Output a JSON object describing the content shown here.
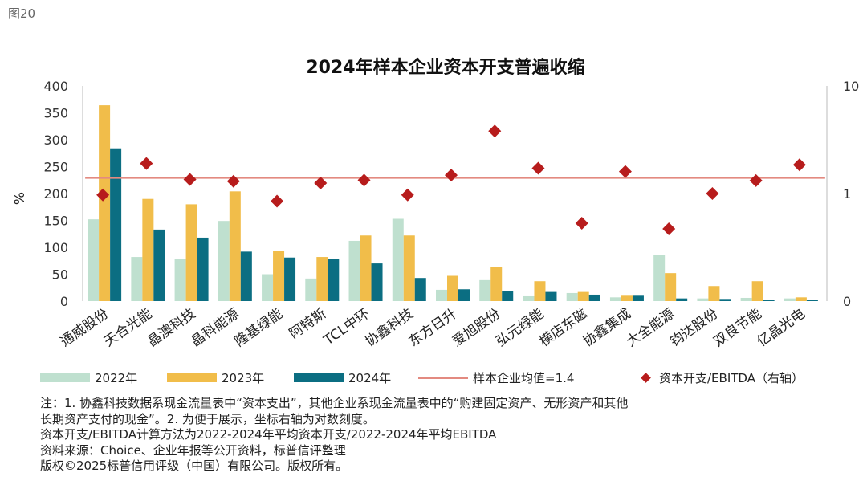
{
  "figure_label": "图20",
  "chart_data": {
    "type": "bar",
    "title": "2024年样本企业资本开支普遍收缩",
    "ylabel": "%",
    "ylim": [
      0,
      400
    ],
    "y_ticks": [
      "0",
      "50",
      "100",
      "150",
      "200",
      "250",
      "300",
      "350",
      "400"
    ],
    "y2_scale": "log",
    "y2lim": [
      0.1,
      10
    ],
    "y2_ticks": [
      {
        "value": 0.1,
        "label": "0"
      },
      {
        "value": 1,
        "label": "1"
      },
      {
        "value": 10,
        "label": "10"
      }
    ],
    "categories": [
      "通威股份",
      "天合光能",
      "晶澳科技",
      "晶科能源",
      "隆基绿能",
      "阿特斯",
      "TCL中环",
      "协鑫科技",
      "东方日升",
      "爱旭股份",
      "弘元绿能",
      "横店东磁",
      "协鑫集成",
      "大全能源",
      "钧达股份",
      "双良节能",
      "亿晶光电"
    ],
    "series": [
      {
        "name": "2022年",
        "color": "#bfe0cf",
        "values": [
          152,
          82,
          78,
          149,
          50,
          42,
          112,
          153,
          21,
          39,
          9,
          15,
          7,
          86,
          5,
          6,
          5
        ]
      },
      {
        "name": "2023年",
        "color": "#f1bd4a",
        "values": [
          364,
          190,
          180,
          204,
          93,
          82,
          122,
          122,
          47,
          63,
          37,
          17,
          10,
          52,
          28,
          37,
          7
        ]
      },
      {
        "name": "2024年",
        "color": "#0b6e82",
        "values": [
          284,
          133,
          118,
          92,
          81,
          79,
          70,
          43,
          22,
          19,
          17,
          12,
          10,
          5,
          4,
          2,
          2
        ]
      }
    ],
    "average_line": {
      "name": "样本企业均值=1.4",
      "value": 1.4,
      "axis": "right",
      "color": "#e38a80"
    },
    "scatter": {
      "name": "资本开支/EBITDA（右轴）",
      "axis": "right",
      "color": "#b71c1c",
      "values": [
        0.97,
        1.9,
        1.35,
        1.3,
        0.85,
        1.25,
        1.33,
        0.97,
        1.48,
        3.8,
        1.72,
        0.53,
        1.6,
        0.47,
        1.0,
        1.32,
        1.85
      ]
    },
    "legend_position": "bottom"
  },
  "legend": {
    "s2022": "2022年",
    "s2023": "2023年",
    "s2024": "2024年",
    "avg": "样本企业均值=1.4",
    "ratio": "资本开支/EBITDA（右轴）"
  },
  "notes": {
    "line1": "注：1. 协鑫科技数据系现金流量表中“资本支出”，其他企业系现金流量表中的“购建固定资产、无形资产和其他",
    "line2": "长期资产支付的现金”。2. 为便于展示，坐标右轴为对数刻度。",
    "line3": "资本开支/EBITDA计算方法为2022-2024年平均资本开支/2022-2024年平均EBITDA",
    "line4": "资料来源：Choice、企业年报等公开资料，标普信评整理",
    "line5": "版权©2025标普信用评级（中国）有限公司。版权所有。"
  }
}
